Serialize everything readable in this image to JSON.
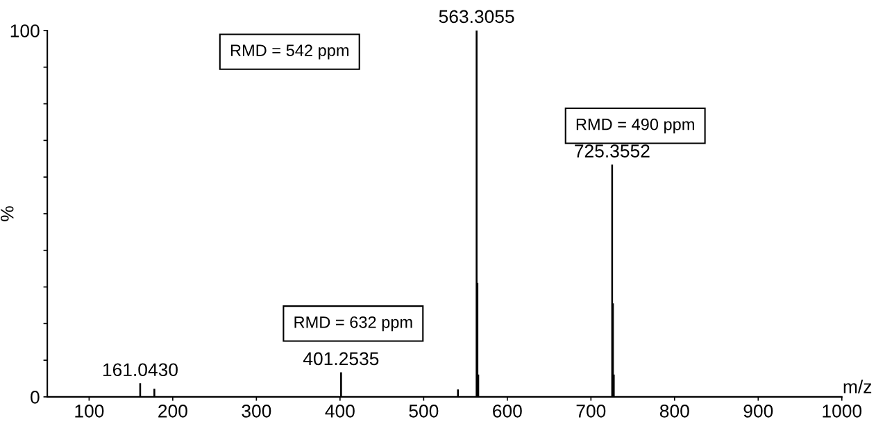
{
  "chart_data": {
    "type": "bar",
    "xlabel": "m/z",
    "ylabel": "%",
    "x": [
      161.043,
      178,
      401.2535,
      541,
      563.3055,
      564.3,
      565.3,
      725.3552,
      726.36,
      727.36
    ],
    "values": [
      3.6,
      2.1,
      6.6,
      1.9,
      100,
      31,
      6,
      63.3,
      25.4,
      6
    ],
    "color": "#000000",
    "annotations": [
      "RMD = 632 ppm",
      "RMD = 542 ppm",
      "RMD = 490 ppm",
      {
        "text": "161.0430",
        "x": 161.043,
        "y": 3.6
      },
      {
        "text": "401.2535",
        "x": 401.2535,
        "y": 6.6
      },
      {
        "text": "563.3055",
        "x": 563.3055,
        "y": 100
      },
      {
        "text": "725.3552",
        "x": 725.3552,
        "y": 63.3
      }
    ],
    "xlim": [
      50,
      1000
    ],
    "ylim": [
      0,
      100
    ],
    "xticks": [
      100,
      200,
      300,
      400,
      500,
      600,
      700,
      800,
      900,
      1000
    ],
    "yticks": [
      0,
      {
        "value": 10,
        "label": null
      },
      {
        "value": 20,
        "label": null
      },
      {
        "value": 30,
        "label": null
      },
      {
        "value": 40,
        "label": null
      },
      {
        "value": 50,
        "label": null
      },
      {
        "value": 60,
        "label": null
      },
      {
        "value": 70,
        "label": null
      },
      {
        "value": 80,
        "label": null
      },
      {
        "value": 90,
        "label": null
      },
      100
    ],
    "grid": false,
    "legend": false
  }
}
